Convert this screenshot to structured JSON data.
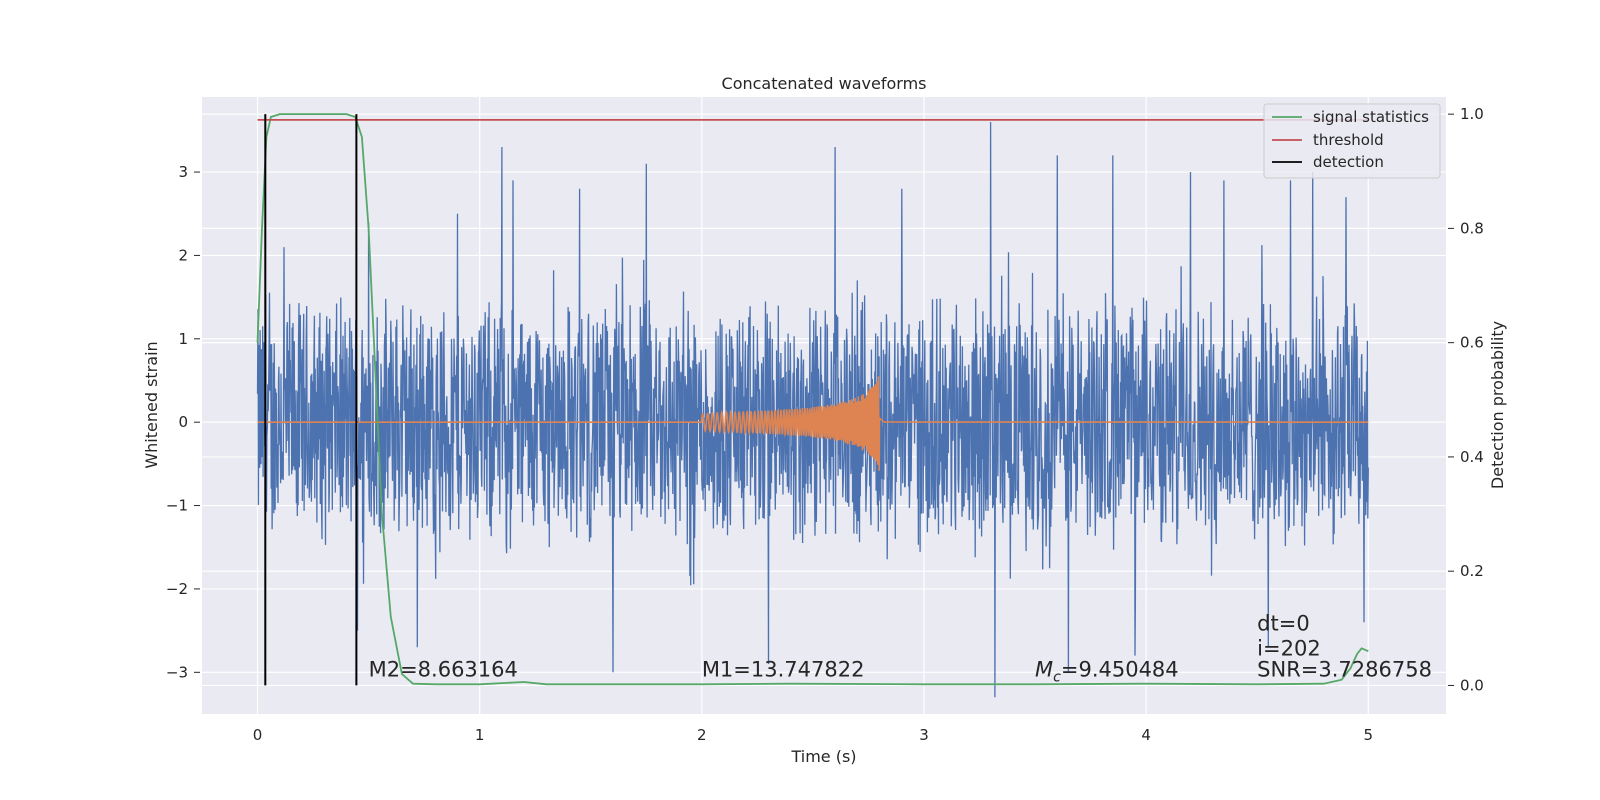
{
  "chart_data": {
    "type": "line",
    "title": "Concatenated waveforms",
    "xlabel": "Time (s)",
    "ylabel": "Whitened strain",
    "y2label": "Detection probability",
    "xlim": [
      -0.25,
      5.35
    ],
    "ylim": [
      -3.5,
      3.9
    ],
    "y2lim": [
      -0.05,
      1.03
    ],
    "xticks": [
      0,
      1,
      2,
      3,
      4,
      5
    ],
    "yticks": [
      -3,
      -2,
      -1,
      0,
      1,
      2,
      3
    ],
    "y2ticks": [
      0.0,
      0.2,
      0.4,
      0.6,
      0.8,
      1.0
    ],
    "ytick_labels": [
      "−3",
      "−2",
      "−1",
      "0",
      "1",
      "2",
      "3"
    ],
    "y2tick_labels": [
      "0.0",
      "0.2",
      "0.4",
      "0.6",
      "0.8",
      "1.0"
    ],
    "grid": true,
    "legend_position": "top-right",
    "legend": [
      {
        "name": "signal statistics",
        "color": "#55a868"
      },
      {
        "name": "threshold",
        "color": "#c44e52"
      },
      {
        "name": "detection",
        "color": "#000000"
      }
    ],
    "series": [
      {
        "name": "whitened strain",
        "color": "#4c72b0",
        "axis": "left",
        "x_range": [
          0,
          5
        ],
        "typical_amplitude": 1.6,
        "peak_max": 3.6,
        "peak_min": -3.3,
        "spikes": [
          {
            "x": 0.12,
            "y": 2.1
          },
          {
            "x": 0.45,
            "y": -2.5
          },
          {
            "x": 0.5,
            "y": 2.4
          },
          {
            "x": 0.72,
            "y": -2.7
          },
          {
            "x": 0.9,
            "y": 2.5
          },
          {
            "x": 1.1,
            "y": 3.3
          },
          {
            "x": 1.15,
            "y": 2.9
          },
          {
            "x": 1.45,
            "y": 2.8
          },
          {
            "x": 1.6,
            "y": -3.0
          },
          {
            "x": 1.75,
            "y": 3.1
          },
          {
            "x": 2.3,
            "y": -2.9
          },
          {
            "x": 2.6,
            "y": 3.3
          },
          {
            "x": 2.9,
            "y": 2.8
          },
          {
            "x": 3.3,
            "y": 3.6
          },
          {
            "x": 3.32,
            "y": -3.3
          },
          {
            "x": 3.6,
            "y": 3.2
          },
          {
            "x": 3.65,
            "y": -3.0
          },
          {
            "x": 3.85,
            "y": 3.2
          },
          {
            "x": 3.95,
            "y": -2.8
          },
          {
            "x": 4.2,
            "y": 3.0
          },
          {
            "x": 4.35,
            "y": 2.9
          },
          {
            "x": 4.55,
            "y": -2.7
          },
          {
            "x": 4.65,
            "y": 2.9
          },
          {
            "x": 4.75,
            "y": 3.0
          },
          {
            "x": 4.9,
            "y": 2.7
          },
          {
            "x": 4.98,
            "y": -2.4
          }
        ]
      },
      {
        "name": "injected waveform",
        "color": "#dd8452",
        "axis": "left",
        "x": [
          0,
          2.0,
          2.1,
          2.2,
          2.3,
          2.4,
          2.5,
          2.6,
          2.7,
          2.75,
          2.79,
          2.8,
          2.82,
          5.0
        ],
        "envelope": [
          0,
          0.1,
          0.12,
          0.13,
          0.14,
          0.16,
          0.18,
          0.22,
          0.3,
          0.38,
          0.5,
          0.6,
          0.02,
          0
        ]
      },
      {
        "name": "signal statistics",
        "color": "#55a868",
        "axis": "right",
        "x": [
          0,
          0.02,
          0.04,
          0.06,
          0.1,
          0.2,
          0.3,
          0.4,
          0.44,
          0.47,
          0.5,
          0.53,
          0.56,
          0.6,
          0.65,
          0.7,
          0.8,
          1.0,
          1.2,
          1.3,
          2.0,
          2.4,
          3.0,
          3.5,
          4.0,
          4.5,
          4.8,
          4.88,
          4.92,
          4.95,
          4.97,
          5.0
        ],
        "y": [
          0.6,
          0.8,
          0.96,
          0.995,
          1.0,
          1.0,
          1.0,
          1.0,
          0.995,
          0.96,
          0.8,
          0.55,
          0.3,
          0.12,
          0.02,
          0.003,
          0.002,
          0.002,
          0.006,
          0.002,
          0.002,
          0.003,
          0.002,
          0.002,
          0.003,
          0.002,
          0.003,
          0.01,
          0.03,
          0.055,
          0.065,
          0.06
        ]
      },
      {
        "name": "threshold",
        "color": "#c44e52",
        "axis": "right",
        "x": [
          0,
          5
        ],
        "y": [
          0.99,
          0.99
        ]
      },
      {
        "name": "detection",
        "color": "#000000",
        "axis": "right",
        "x_values": [
          0.035,
          0.445
        ],
        "y_range": [
          0.0,
          1.0
        ]
      }
    ],
    "annotations": [
      {
        "id": "m2",
        "text": "M2=8.663164",
        "x": 0.5,
        "y": -3.05
      },
      {
        "id": "m1",
        "text": "M1=13.747822",
        "x": 2.0,
        "y": -3.05
      },
      {
        "id": "mc",
        "text_main": "M",
        "text_sub": "c",
        "text_rest": "=9.450484",
        "x": 3.5,
        "y": -3.05
      },
      {
        "id": "dt",
        "text": "dt=0",
        "x": 4.5,
        "y": -2.5
      },
      {
        "id": "i",
        "text": "i=202",
        "x": 4.5,
        "y": -2.8
      },
      {
        "id": "snr",
        "text": "SNR=3.7286758",
        "x": 4.5,
        "y": -3.05
      }
    ]
  }
}
